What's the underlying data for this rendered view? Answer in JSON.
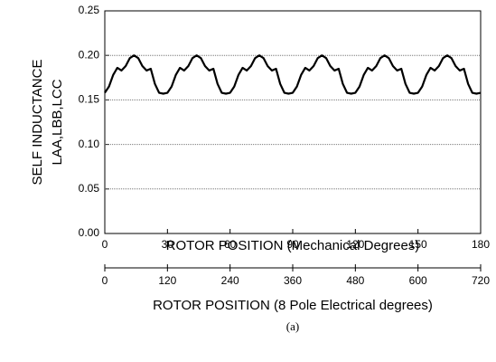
{
  "chart_data": {
    "type": "line",
    "ylabel": "SELF INDUCTANCE",
    "ylabel2": "LAA,LBB,LCC",
    "xlabel": "ROTOR POSITION (Mechanical Degrees)",
    "x2label": "ROTOR POSITION  (8 Pole Electrical degrees)",
    "caption": "(a)",
    "x": [
      0,
      2,
      4,
      6,
      8,
      10,
      12,
      14,
      16,
      18,
      20,
      22,
      24,
      26,
      28,
      30,
      32,
      34,
      36,
      38,
      40,
      42,
      44,
      46,
      48,
      50,
      52,
      54,
      56,
      58,
      60,
      62,
      64,
      66,
      68,
      70,
      72,
      74,
      76,
      78,
      80,
      82,
      84,
      86,
      88,
      90,
      92,
      94,
      96,
      98,
      100,
      102,
      104,
      106,
      108,
      110,
      112,
      114,
      116,
      118,
      120,
      122,
      124,
      126,
      128,
      130,
      132,
      134,
      136,
      138,
      140,
      142,
      144,
      146,
      148,
      150,
      152,
      154,
      156,
      158,
      160,
      162,
      164,
      166,
      168,
      170,
      172,
      174,
      176,
      178,
      180
    ],
    "series": [
      {
        "name": "",
        "color": "#000000",
        "values": [
          0.158,
          0.165,
          0.178,
          0.186,
          0.183,
          0.188,
          0.197,
          0.2,
          0.197,
          0.188,
          0.183,
          0.185,
          0.168,
          0.158,
          0.157,
          0.158,
          0.165,
          0.178,
          0.186,
          0.183,
          0.188,
          0.197,
          0.2,
          0.197,
          0.188,
          0.183,
          0.185,
          0.168,
          0.158,
          0.157,
          0.158,
          0.165,
          0.178,
          0.186,
          0.183,
          0.188,
          0.197,
          0.2,
          0.197,
          0.188,
          0.183,
          0.185,
          0.168,
          0.158,
          0.157,
          0.158,
          0.165,
          0.178,
          0.186,
          0.183,
          0.188,
          0.197,
          0.2,
          0.197,
          0.188,
          0.183,
          0.185,
          0.168,
          0.158,
          0.157,
          0.158,
          0.165,
          0.178,
          0.186,
          0.183,
          0.188,
          0.197,
          0.2,
          0.197,
          0.188,
          0.183,
          0.185,
          0.168,
          0.158,
          0.157,
          0.158,
          0.165,
          0.178,
          0.186,
          0.183,
          0.188,
          0.197,
          0.2,
          0.197,
          0.188,
          0.183,
          0.185,
          0.168,
          0.158,
          0.157,
          0.158
        ]
      }
    ],
    "xlim": [
      0,
      180
    ],
    "xticks": [
      0,
      30,
      60,
      90,
      120,
      150,
      180
    ],
    "x2lim": [
      0,
      720
    ],
    "x2ticks": [
      0,
      120,
      240,
      360,
      480,
      600,
      720
    ],
    "ylim": [
      0,
      0.25
    ],
    "yticks": [
      {
        "value": 0,
        "label": "0.00"
      },
      {
        "value": 0.05,
        "label": "0.05"
      },
      {
        "value": 0.1,
        "label": "0.10"
      },
      {
        "value": 0.15,
        "label": "0.15"
      },
      {
        "value": 0.2,
        "label": "0.20"
      },
      {
        "value": 0.25,
        "label": "0.25"
      }
    ],
    "grid": true
  }
}
